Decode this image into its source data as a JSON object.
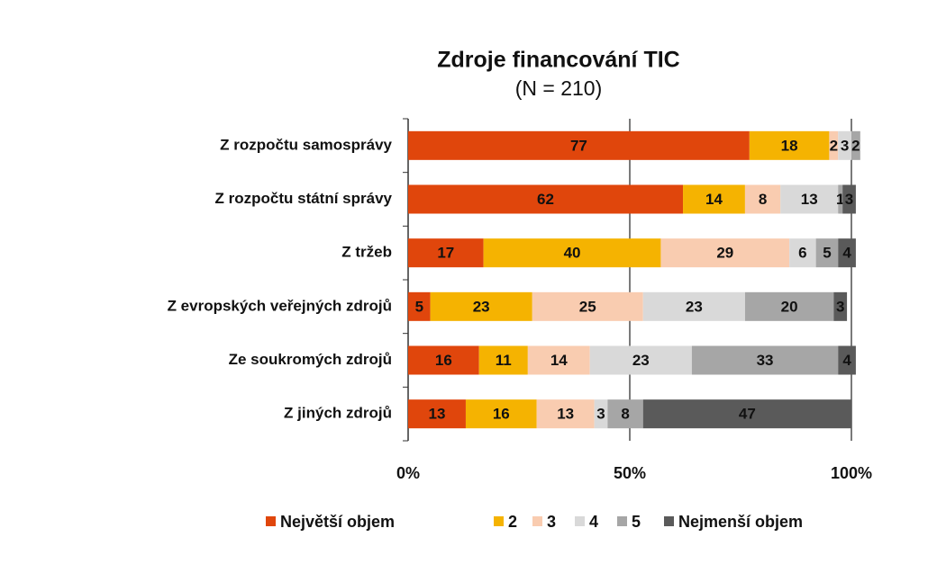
{
  "chart_data": {
    "type": "stacked-bar-horizontal",
    "title": "Zdroje financování TIC",
    "subtitle": "(N = 210)",
    "categories": [
      "Z rozpočtu samosprávy",
      "Z rozpočtu státní správy",
      "Z tržeb",
      "Z evropských  veřejných zdrojů",
      "Ze soukromých  zdrojů",
      "Z jiných zdrojů"
    ],
    "series": [
      {
        "name": "Největší objem",
        "color": "#e0460c",
        "values": [
          77,
          62,
          17,
          5,
          16,
          13
        ]
      },
      {
        "name": "2",
        "color": "#f5b301",
        "values": [
          18,
          14,
          40,
          23,
          11,
          16
        ]
      },
      {
        "name": "3",
        "color": "#f9ccb0",
        "values": [
          2,
          8,
          29,
          25,
          14,
          13
        ]
      },
      {
        "name": "4",
        "color": "#d9d9d9",
        "values": [
          3,
          13,
          6,
          23,
          23,
          3
        ]
      },
      {
        "name": "5",
        "color": "#a6a6a6",
        "values": [
          2,
          1,
          5,
          20,
          33,
          8
        ]
      },
      {
        "name": "Nejmenší objem",
        "color": "#5a5a5a",
        "values": [
          null,
          3,
          4,
          3,
          4,
          47
        ]
      }
    ],
    "xlim": [
      0,
      100
    ],
    "xticks": [
      {
        "value": 0,
        "label": "0%"
      },
      {
        "value": 50,
        "label": "50%"
      },
      {
        "value": 100,
        "label": "100%"
      }
    ],
    "legend": "bottom"
  }
}
